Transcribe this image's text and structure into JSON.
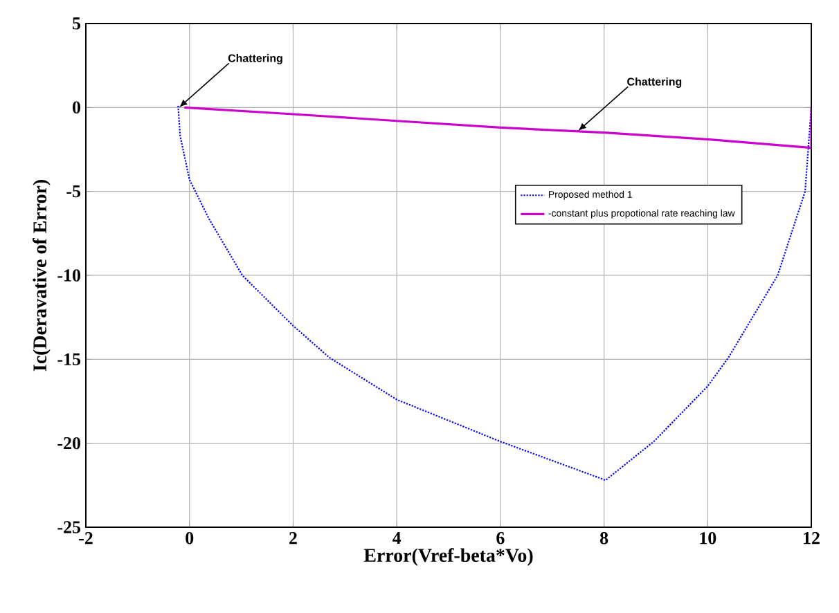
{
  "chart_data": {
    "type": "line",
    "xlabel": "Error(Vref-beta*Vo)",
    "ylabel": "Ic(Deravative of Error)",
    "xlim": [
      -2,
      12
    ],
    "ylim": [
      -25,
      5
    ],
    "xticks": [
      -2,
      0,
      2,
      4,
      6,
      8,
      10,
      12
    ],
    "yticks": [
      -25,
      -20,
      -15,
      -10,
      -5,
      0,
      5
    ],
    "grid": true,
    "legend": "right",
    "marker": "none",
    "series": [
      {
        "name": "Proposed method 1",
        "color": "#0000ff",
        "line_style": "dotted",
        "x": [
          -0.22,
          -0.18,
          0,
          0.37,
          1.02,
          2.0,
          2.7,
          4.0,
          6.0,
          8.03,
          8.96,
          10.0,
          10.4,
          11.35,
          11.88,
          12
        ],
        "values": [
          0.1,
          -1.7,
          -4.3,
          -6.6,
          -10,
          -13.0,
          -14.9,
          -17.4,
          -19.9,
          -22.2,
          -19.9,
          -16.6,
          -14.9,
          -10,
          -5.0,
          0
        ]
      },
      {
        "name": "-constant plus propotional rate reaching law",
        "color": "#cc00cc",
        "line_style": "solid",
        "x": [
          12,
          12,
          10,
          8,
          6,
          4,
          2,
          -0.1
        ],
        "values": [
          0,
          -2.4,
          -1.9,
          -1.5,
          -1.2,
          -0.8,
          -0.4,
          0
        ]
      }
    ],
    "annotations": [
      {
        "text": "Chattering",
        "x": -0.2,
        "y": 0
      },
      {
        "text": "Chattering",
        "x": 7.5,
        "y": -1.4
      }
    ]
  }
}
